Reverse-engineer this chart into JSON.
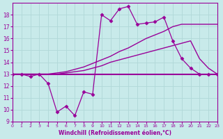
{
  "background_color": "#c8eaea",
  "grid_color": "#b0d8d8",
  "line_color": "#990099",
  "x_label": "Windchill (Refroidissement éolien,°C)",
  "ylim": [
    9,
    19
  ],
  "xlim": [
    0,
    23
  ],
  "yticks": [
    9,
    10,
    11,
    12,
    13,
    14,
    15,
    16,
    17,
    18
  ],
  "xticks": [
    0,
    1,
    2,
    3,
    4,
    5,
    6,
    7,
    8,
    9,
    10,
    11,
    12,
    13,
    14,
    15,
    16,
    17,
    18,
    19,
    20,
    21,
    22,
    23
  ],
  "series": [
    {
      "x": [
        0,
        1,
        2,
        3,
        4,
        5,
        6,
        7,
        8,
        9,
        10,
        11,
        12,
        13,
        14,
        15,
        16,
        17,
        18,
        19,
        20,
        21,
        22,
        23
      ],
      "y": [
        13,
        13,
        13,
        13,
        13,
        13,
        13,
        13,
        13,
        13,
        13,
        13,
        13,
        13,
        13,
        13,
        13,
        13,
        13,
        13,
        13,
        13,
        13,
        13
      ],
      "marker": null,
      "linewidth": 1.5
    },
    {
      "x": [
        0,
        1,
        2,
        3,
        4,
        5,
        6,
        7,
        8,
        9,
        10,
        11,
        12,
        13,
        14,
        15,
        16,
        17,
        18,
        19,
        20,
        21,
        22,
        23
      ],
      "y": [
        13,
        13,
        13,
        13,
        13,
        13,
        13.1,
        13.2,
        13.3,
        13.5,
        13.7,
        14.0,
        14.2,
        14.4,
        14.6,
        14.8,
        15.0,
        15.2,
        15.4,
        15.6,
        15.8,
        14.3,
        13.5,
        13.0
      ],
      "marker": null,
      "linewidth": 1.0
    },
    {
      "x": [
        0,
        1,
        2,
        3,
        4,
        5,
        6,
        7,
        8,
        9,
        10,
        11,
        12,
        13,
        14,
        15,
        16,
        17,
        18,
        19,
        20,
        21,
        22,
        23
      ],
      "y": [
        13,
        13,
        13,
        13,
        13,
        13.1,
        13.2,
        13.4,
        13.6,
        13.9,
        14.2,
        14.5,
        14.9,
        15.2,
        15.6,
        16.0,
        16.3,
        16.6,
        17.0,
        17.2,
        17.2,
        17.2,
        17.2,
        17.2
      ],
      "marker": null,
      "linewidth": 1.0
    },
    {
      "x": [
        0,
        1,
        2,
        3,
        4,
        5,
        6,
        7,
        8,
        9,
        10,
        11,
        12,
        13,
        14,
        15,
        16,
        17,
        18,
        19,
        20,
        21,
        22,
        23
      ],
      "y": [
        13,
        13,
        12.8,
        13,
        12.2,
        9.8,
        10.3,
        9.5,
        11.5,
        11.3,
        18.0,
        17.5,
        18.5,
        18.7,
        17.2,
        17.3,
        17.4,
        17.8,
        15.8,
        14.3,
        13.5,
        13.0,
        13.0,
        13.0
      ],
      "marker": "D",
      "linewidth": 0.9
    }
  ]
}
